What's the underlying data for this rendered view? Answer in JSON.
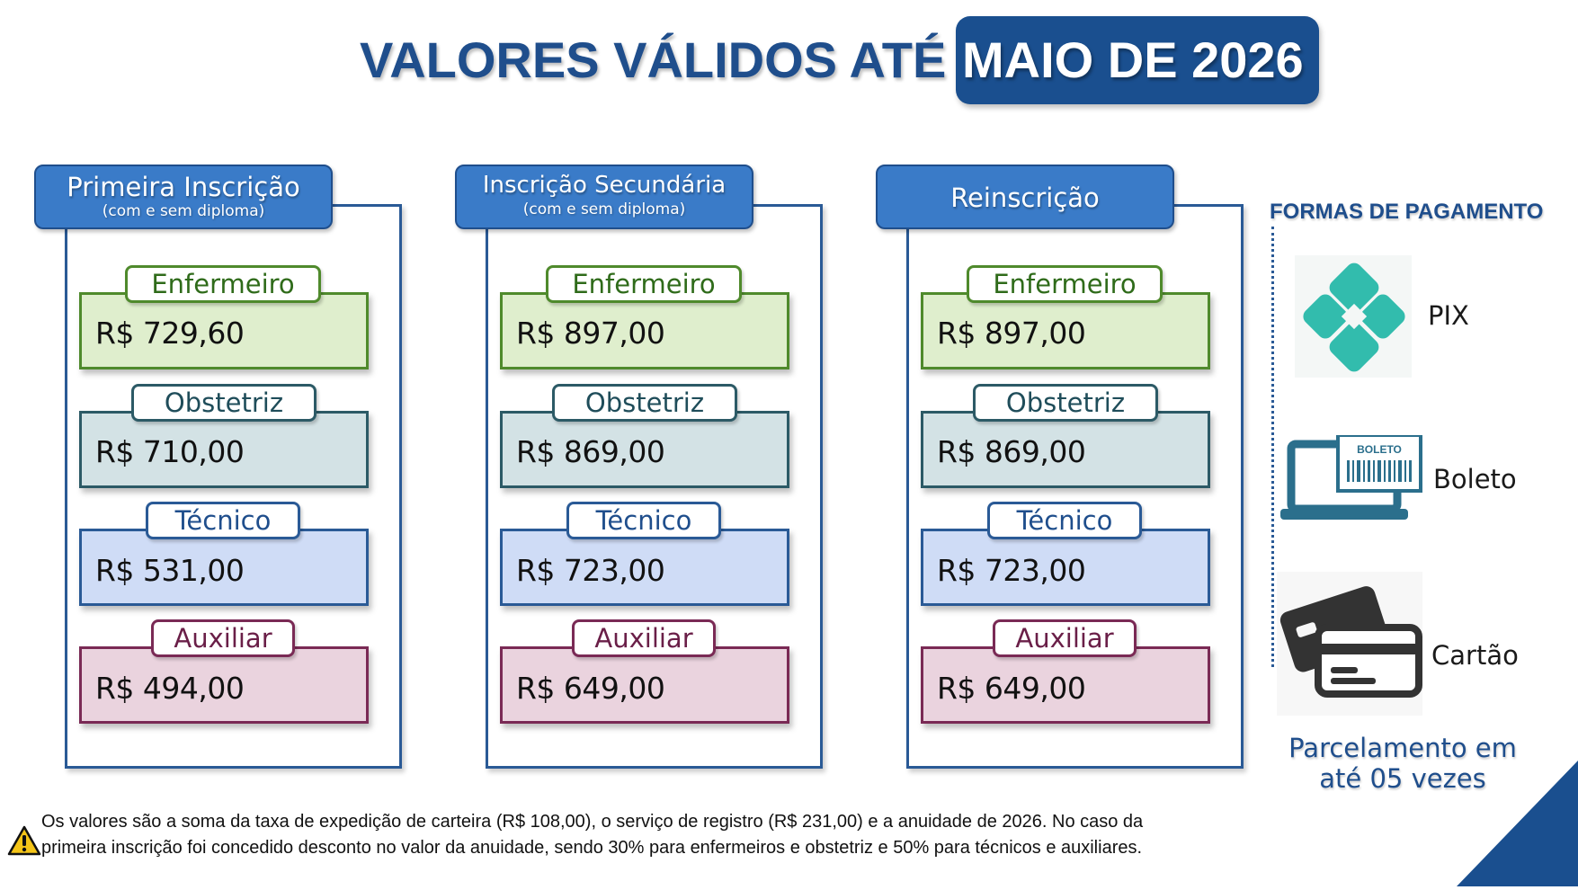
{
  "header": {
    "title_prefix": "VALORES VÁLIDOS ATÉ",
    "title_highlight": "MAIO DE 2026"
  },
  "panels": [
    {
      "title": "Primeira Inscrição",
      "subtitle": "(com e sem diploma)",
      "items": [
        {
          "category": "Enfermeiro",
          "price": "R$ 729,60"
        },
        {
          "category": "Obstetriz",
          "price": "R$ 710,00"
        },
        {
          "category": "Técnico",
          "price": "R$ 531,00"
        },
        {
          "category": "Auxiliar",
          "price": "R$ 494,00"
        }
      ]
    },
    {
      "title": "Inscrição Secundária",
      "subtitle": "(com e sem diploma)",
      "items": [
        {
          "category": "Enfermeiro",
          "price": "R$ 897,00"
        },
        {
          "category": "Obstetriz",
          "price": "R$ 869,00"
        },
        {
          "category": "Técnico",
          "price": "R$ 723,00"
        },
        {
          "category": "Auxiliar",
          "price": "R$ 649,00"
        }
      ]
    },
    {
      "title": "Reinscrição",
      "subtitle": "",
      "items": [
        {
          "category": "Enfermeiro",
          "price": "R$ 897,00"
        },
        {
          "category": "Obstetriz",
          "price": "R$ 869,00"
        },
        {
          "category": "Técnico",
          "price": "R$ 723,00"
        },
        {
          "category": "Auxiliar",
          "price": "R$ 649,00"
        }
      ]
    }
  ],
  "payment": {
    "title": "FORMAS DE PAGAMENTO",
    "methods": [
      {
        "label": "PIX",
        "icon": "pix-icon"
      },
      {
        "label": "Boleto",
        "icon": "boleto-laptop-icon",
        "icon_text": "BOLETO"
      },
      {
        "label": "Cartão",
        "icon": "credit-card-icon"
      }
    ],
    "installments_line1": "Parcelamento em",
    "installments_line2": "até 05 vezes"
  },
  "footer": {
    "note_line1": "Os valores são a soma da taxa de expedição de carteira (R$ 108,00), o serviço de registro (R$ 231,00) e a anuidade de 2026. No caso da",
    "note_line2": "primeira inscrição foi concedido desconto no valor da anuidade, sendo 30% para enfermeiros e obstetriz e 50% para técnicos e auxiliares.",
    "icon": "warning-icon"
  },
  "colors": {
    "primary_blue": "#1f4e8c",
    "tab_blue": "#3a7bc8",
    "enfermeiro_green": "#dfeecd",
    "obstetriz_teal": "#d3e2e5",
    "tecnico_blue": "#cfdcf6",
    "auxiliar_pink": "#ead3de",
    "pix_teal": "#32bcad"
  }
}
